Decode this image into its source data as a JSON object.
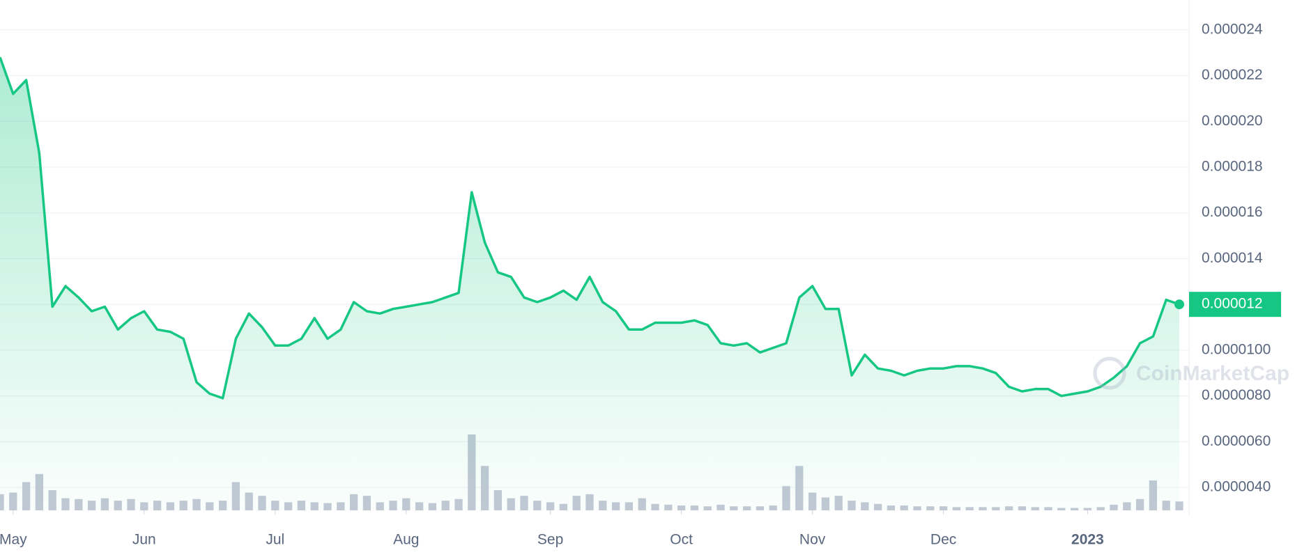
{
  "chart_data": {
    "type": "line",
    "categories": [
      null,
      "May",
      null,
      null,
      null,
      null,
      null,
      null,
      null,
      null,
      null,
      "Jun",
      null,
      null,
      null,
      null,
      null,
      null,
      null,
      null,
      null,
      "Jul",
      null,
      null,
      null,
      null,
      null,
      null,
      null,
      null,
      null,
      "Aug",
      null,
      null,
      null,
      null,
      null,
      null,
      null,
      null,
      null,
      null,
      "Sep",
      null,
      null,
      null,
      null,
      null,
      null,
      null,
      null,
      null,
      "Oct",
      null,
      null,
      null,
      null,
      null,
      null,
      null,
      null,
      null,
      "Nov",
      null,
      null,
      null,
      null,
      null,
      null,
      null,
      null,
      null,
      "Dec",
      null,
      null,
      null,
      null,
      null,
      null,
      null,
      null,
      null,
      null,
      "2023",
      null,
      null,
      null,
      null,
      null,
      null,
      null
    ],
    "series": [
      {
        "color": "#16c784",
        "values": [
          2.28e-05,
          2.12e-05,
          2.18e-05,
          1.86e-05,
          1.19e-05,
          1.28e-05,
          1.23e-05,
          1.17e-05,
          1.19e-05,
          1.09e-05,
          1.14e-05,
          1.17e-05,
          1.09e-05,
          1.08e-05,
          1.05e-05,
          8.6e-06,
          8.1e-06,
          7.9e-06,
          1.05e-05,
          1.16e-05,
          1.1e-05,
          1.02e-05,
          1.02e-05,
          1.05e-05,
          1.14e-05,
          1.05e-05,
          1.09e-05,
          1.21e-05,
          1.17e-05,
          1.16e-05,
          1.18e-05,
          1.19e-05,
          1.2e-05,
          1.21e-05,
          1.23e-05,
          1.25e-05,
          1.69e-05,
          1.47e-05,
          1.34e-05,
          1.32e-05,
          1.23e-05,
          1.21e-05,
          1.23e-05,
          1.26e-05,
          1.22e-05,
          1.32e-05,
          1.21e-05,
          1.17e-05,
          1.09e-05,
          1.09e-05,
          1.12e-05,
          1.12e-05,
          1.12e-05,
          1.13e-05,
          1.11e-05,
          1.03e-05,
          1.02e-05,
          1.03e-05,
          9.9e-06,
          1.01e-05,
          1.03e-05,
          1.23e-05,
          1.28e-05,
          1.18e-05,
          1.18e-05,
          8.9e-06,
          9.8e-06,
          9.2e-06,
          9.1e-06,
          8.9e-06,
          9.1e-06,
          9.2e-06,
          9.2e-06,
          9.3e-06,
          9.3e-06,
          9.2e-06,
          9e-06,
          8.4e-06,
          8.2e-06,
          8.3e-06,
          8.3e-06,
          8e-06,
          8.1e-06,
          8.2e-06,
          8.4e-06,
          8.8e-06,
          9.3e-06,
          1.03e-05,
          1.06e-05,
          1.22e-05,
          1.2e-05
        ]
      }
    ],
    "volume": {
      "color": "#c3c8d5",
      "values": [
        20,
        22,
        35,
        45,
        25,
        15,
        14,
        12,
        15,
        12,
        14,
        10,
        12,
        10,
        12,
        14,
        10,
        12,
        35,
        22,
        18,
        12,
        10,
        12,
        10,
        9,
        10,
        20,
        18,
        10,
        12,
        15,
        10,
        9,
        12,
        14,
        94,
        55,
        25,
        15,
        18,
        12,
        10,
        8,
        18,
        20,
        12,
        10,
        10,
        15,
        8,
        7,
        6,
        6,
        5,
        7,
        5,
        5,
        5,
        6,
        30,
        55,
        22,
        16,
        18,
        12,
        10,
        8,
        6,
        6,
        5,
        5,
        5,
        4,
        4,
        4,
        4,
        5,
        5,
        4,
        4,
        3,
        3,
        3,
        4,
        7,
        10,
        14,
        37,
        12,
        11
      ]
    },
    "current_price": 1.2e-05,
    "watermark": "CoinMarketCap",
    "ylim": [
      3e-06,
      2.53e-05
    ],
    "yticks": [
      2.4e-05,
      2.2e-05,
      {
        "value": 2e-05,
        "label": "0.000020"
      },
      1.8e-05,
      1.6e-05,
      1.4e-05,
      1.2e-05,
      {
        "value": 1e-05,
        "label": "0.0000100"
      },
      {
        "value": 8e-06,
        "label": "0.0000080"
      },
      {
        "value": 6e-06,
        "label": "0.0000060"
      },
      {
        "value": 4e-06,
        "label": "0.0000040"
      }
    ],
    "grid": true
  }
}
